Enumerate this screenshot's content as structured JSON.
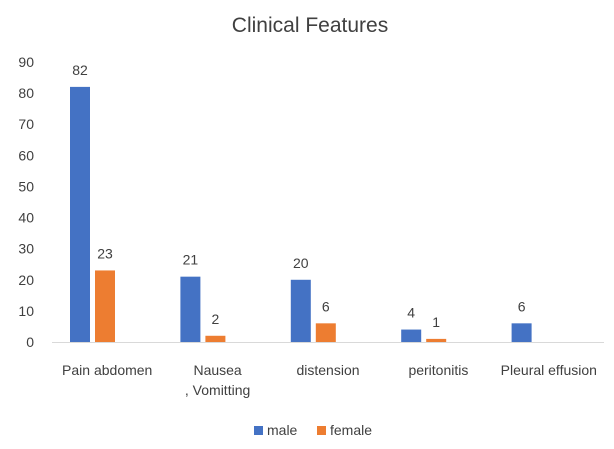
{
  "chart_data": {
    "type": "bar",
    "title": "Clinical Features",
    "categories": [
      [
        "Pain abdomen"
      ],
      [
        "Nausea",
        ", Vomitting"
      ],
      [
        "distension"
      ],
      [
        "peritonitis"
      ],
      [
        "Pleural effusion"
      ]
    ],
    "series": [
      {
        "name": "male",
        "color": "#4472C4",
        "values": [
          82,
          21,
          20,
          4,
          6
        ]
      },
      {
        "name": "female",
        "color": "#ED7D31",
        "values": [
          23,
          2,
          6,
          1,
          null
        ]
      }
    ],
    "ylim": [
      0,
      90
    ],
    "yticks": [
      0,
      10,
      20,
      30,
      40,
      50,
      60,
      70,
      80,
      90
    ],
    "grid": false,
    "legend": "bottom"
  }
}
